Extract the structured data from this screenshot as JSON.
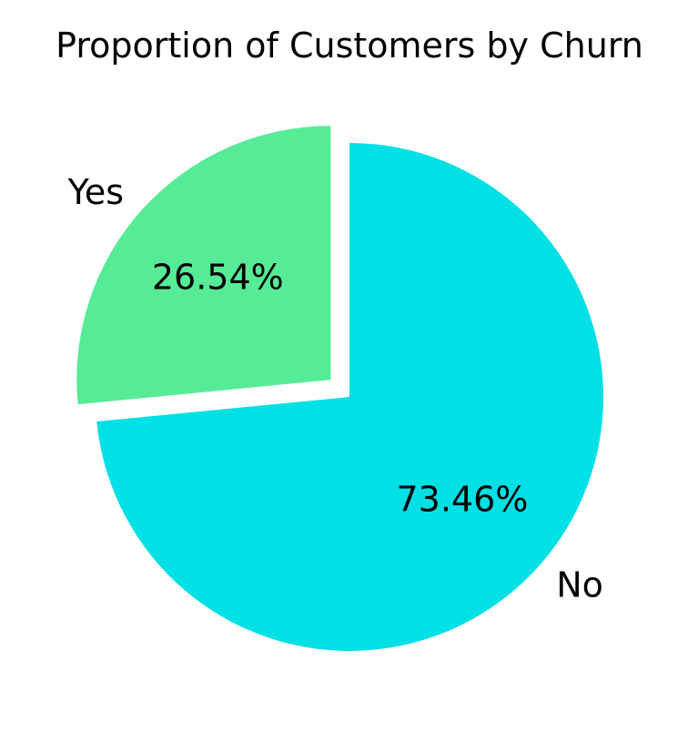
{
  "chart_data": {
    "type": "pie",
    "title": "Proportion of Customers by Churn",
    "slices": [
      {
        "label": "No",
        "value": 73.46,
        "pct_label": "73.46%",
        "color": "#00E0E5",
        "exploded": false
      },
      {
        "label": "Yes",
        "value": 26.54,
        "pct_label": "26.54%",
        "color": "#56EB96",
        "exploded": true
      }
    ],
    "start_angle_deg": 90,
    "direction": "clockwise",
    "legend": "none"
  }
}
